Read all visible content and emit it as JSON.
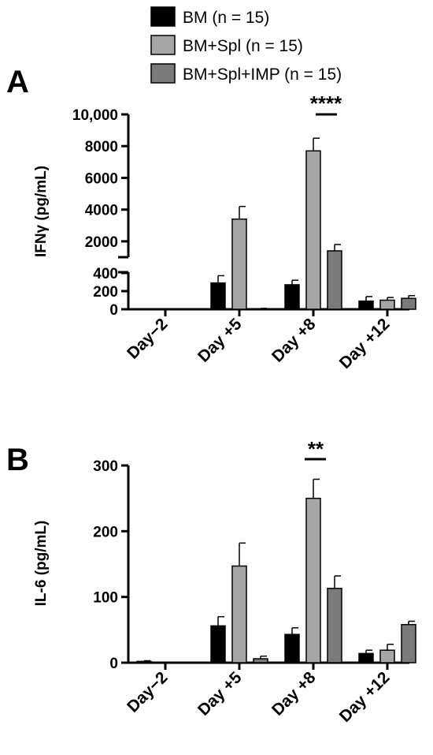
{
  "legend": [
    {
      "name": "BM (n = 15)",
      "color": "#000000"
    },
    {
      "name": "BM+Spl (n = 15)",
      "color": "#a6a6a6"
    },
    {
      "name": "BM+Spl+IMP (n = 15)",
      "color": "#7a7a7a"
    }
  ],
  "chart_data": [
    {
      "panel": "A",
      "type": "bar",
      "ylabel": "IFNγ (pg/mL)",
      "categories": [
        "Day−2",
        "Day +5",
        "Day +8",
        "Day +12"
      ],
      "y_axis_break": true,
      "ylim_lower": [
        0,
        400
      ],
      "ylim_upper": [
        1000,
        10000
      ],
      "yticks_lower": [
        "0",
        "200",
        "400"
      ],
      "yticks_upper": [
        "2000",
        "4000",
        "6000",
        "8000",
        "10,000"
      ],
      "series": [
        {
          "name": "BM (n = 15)",
          "values": [
            0,
            290,
            270,
            90
          ],
          "errors": [
            0,
            80,
            50,
            50
          ]
        },
        {
          "name": "BM+Spl (n = 15)",
          "values": [
            0,
            3400,
            7700,
            100
          ],
          "errors": [
            0,
            800,
            800,
            30
          ]
        },
        {
          "name": "BM+Spl+IMP (n = 15)",
          "values": [
            0,
            5,
            1400,
            120
          ],
          "errors": [
            0,
            5,
            400,
            30
          ]
        }
      ],
      "significance": [
        {
          "category": "Day +8",
          "label": "****"
        }
      ]
    },
    {
      "panel": "B",
      "type": "bar",
      "ylabel": "IL-6 (pg/mL)",
      "categories": [
        "Day−2",
        "Day +5",
        "Day +8",
        "Day +12"
      ],
      "ylim": [
        0,
        300
      ],
      "yticks": [
        "0",
        "100",
        "200",
        "300"
      ],
      "series": [
        {
          "name": "BM (n = 15)",
          "values": [
            2,
            56,
            43,
            14
          ],
          "errors": [
            1,
            14,
            10,
            5
          ]
        },
        {
          "name": "BM+Spl (n = 15)",
          "values": [
            0,
            147,
            250,
            19
          ],
          "errors": [
            0,
            35,
            29,
            9
          ]
        },
        {
          "name": "BM+Spl+IMP (n = 15)",
          "values": [
            0,
            6,
            113,
            58
          ],
          "errors": [
            0,
            4,
            19,
            5
          ]
        }
      ],
      "significance": [
        {
          "category": "Day +8",
          "label": "**"
        }
      ]
    }
  ]
}
